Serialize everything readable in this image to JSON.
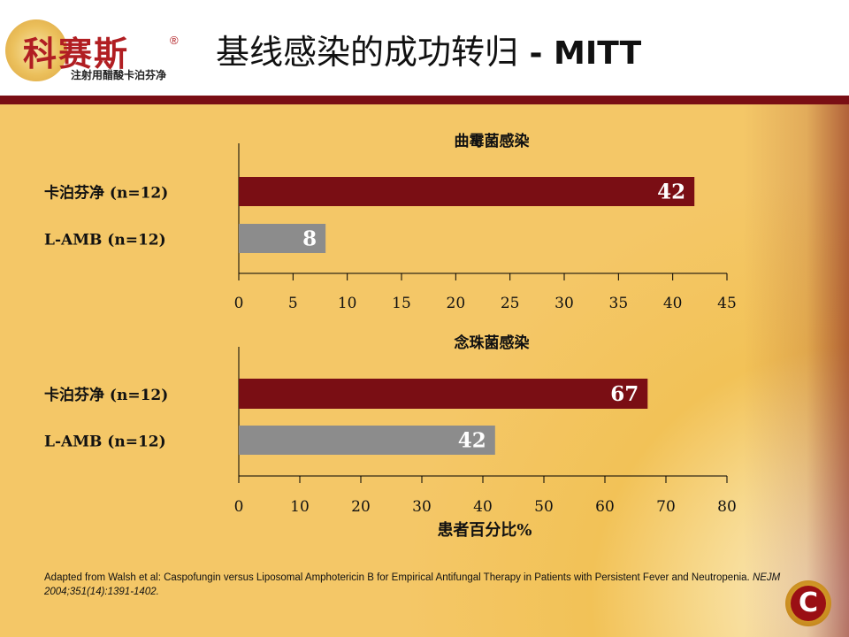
{
  "header": {
    "title_main": "基线感染的成功转归",
    "title_sep": " - ",
    "title_suffix": "MITT",
    "logo_name": "科赛斯",
    "logo_reg": "®",
    "logo_sub": "注射用醋酸卡泊芬净",
    "logo_icon": "brand-seal-icon"
  },
  "colors": {
    "band": "#7a0e14",
    "bar_primary": "#7a0e14",
    "bar_secondary": "#8c8c8c",
    "background": "#f2c257"
  },
  "chart_data": [
    {
      "type": "bar",
      "orientation": "horizontal",
      "title": "曲霉菌感染",
      "categories": [
        "卡泊芬净 (n=12)",
        "L-AMB (n=12)"
      ],
      "values": [
        42,
        8
      ],
      "data_labels": [
        "42",
        "8"
      ],
      "xlim": [
        0,
        45
      ],
      "xticks": [
        0,
        5,
        10,
        15,
        20,
        25,
        30,
        35,
        40,
        45
      ],
      "xlabel": ""
    },
    {
      "type": "bar",
      "orientation": "horizontal",
      "title": "念珠菌感染",
      "categories": [
        "卡泊芬净 (n=12)",
        "L-AMB (n=12)"
      ],
      "values": [
        67,
        42
      ],
      "data_labels": [
        "67",
        "42"
      ],
      "xlim": [
        0,
        80
      ],
      "xticks": [
        0,
        10,
        20,
        30,
        40,
        50,
        60,
        70,
        80
      ],
      "xlabel": "患者百分比%"
    }
  ],
  "footnote": {
    "text": "Adapted from Walsh et al: Caspofungin versus Liposomal Amphotericin B for Empirical Antifungal Therapy in Patients with Persistent Fever and Neutropenia. ",
    "citation": "NEJM 2004;351(14):1391-1402."
  },
  "corner_logo": {
    "icon": "corner-c-logo-icon",
    "letter": "C"
  }
}
